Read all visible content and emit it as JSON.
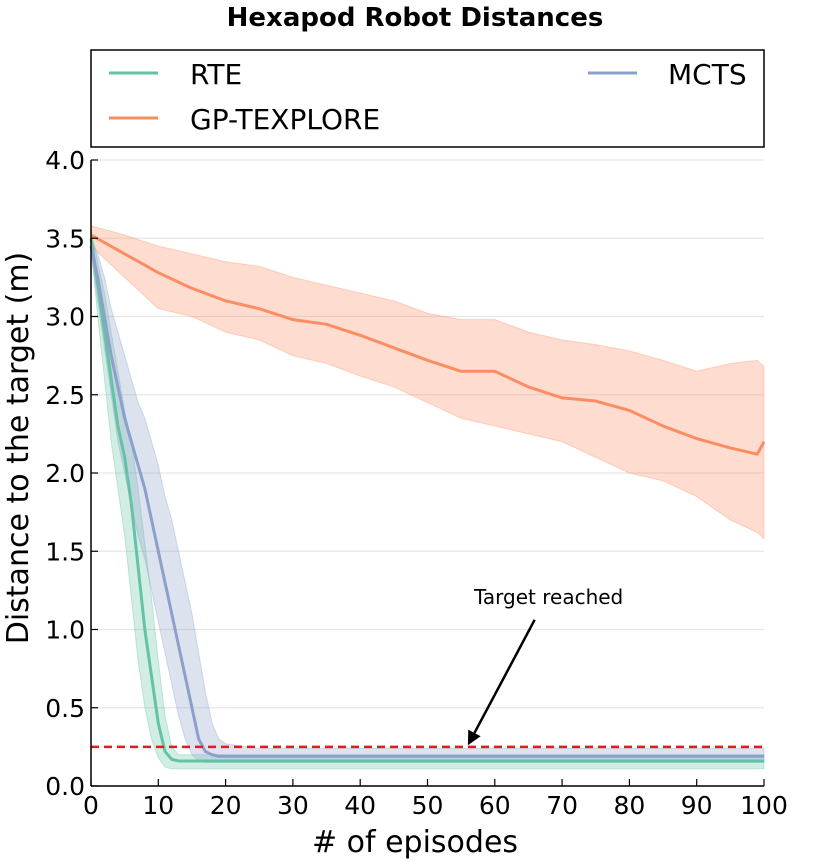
{
  "chart_data": {
    "type": "line",
    "title": "Hexapod Robot Distances",
    "xlabel": "# of episodes",
    "ylabel": "Distance to the target (m)",
    "xlim": [
      0,
      100
    ],
    "ylim": [
      0,
      4
    ],
    "xticks": [
      0,
      10,
      20,
      30,
      40,
      50,
      60,
      70,
      80,
      90,
      100
    ],
    "yticks": [
      0,
      0.5,
      1,
      1.5,
      2,
      2.5,
      3,
      3.5,
      4
    ],
    "xtick_labels": [
      "0",
      "10",
      "20",
      "30",
      "40",
      "50",
      "60",
      "70",
      "80",
      "90",
      "100"
    ],
    "ytick_labels": [
      "0.0",
      "0.5",
      "1.0",
      "1.5",
      "2.0",
      "2.5",
      "3.0",
      "3.5",
      "4.0"
    ],
    "grid": "horizontal",
    "legend": {
      "placement": "top",
      "entries": [
        "RTE",
        "GP-TEXPLORE",
        "MCTS"
      ]
    },
    "threshold": {
      "y": 0.25,
      "color": "#e41a1c",
      "style": "dashed"
    },
    "annotation": {
      "text": "Target reached",
      "text_at": [
        68,
        1.1
      ],
      "arrow_to": [
        56,
        0.26
      ]
    },
    "series": [
      {
        "name": "RTE",
        "color": "#66c2a5",
        "x": [
          0,
          1,
          2,
          3,
          4,
          5,
          6,
          7,
          8,
          9,
          10,
          11,
          12,
          13,
          14,
          15,
          20,
          30,
          50,
          100
        ],
        "mean": [
          3.5,
          3.2,
          2.9,
          2.6,
          2.3,
          2.1,
          1.8,
          1.4,
          1.0,
          0.7,
          0.4,
          0.22,
          0.17,
          0.16,
          0.16,
          0.16,
          0.16,
          0.16,
          0.16,
          0.16
        ],
        "lower": [
          3.45,
          3.0,
          2.6,
          2.2,
          1.9,
          1.6,
          1.2,
          0.8,
          0.5,
          0.3,
          0.18,
          0.12,
          0.11,
          0.11,
          0.11,
          0.11,
          0.11,
          0.11,
          0.11,
          0.11
        ],
        "upper": [
          3.55,
          3.35,
          3.15,
          2.9,
          2.65,
          2.4,
          2.2,
          1.9,
          1.55,
          1.2,
          0.8,
          0.45,
          0.25,
          0.2,
          0.2,
          0.2,
          0.2,
          0.2,
          0.2,
          0.2
        ]
      },
      {
        "name": "GP-TEXPLORE",
        "color": "#fc8d62",
        "x": [
          0,
          5,
          10,
          15,
          20,
          25,
          30,
          35,
          40,
          45,
          50,
          55,
          60,
          65,
          70,
          75,
          80,
          85,
          90,
          95,
          99,
          100
        ],
        "mean": [
          3.52,
          3.4,
          3.28,
          3.18,
          3.1,
          3.05,
          2.98,
          2.95,
          2.88,
          2.8,
          2.72,
          2.65,
          2.65,
          2.55,
          2.48,
          2.46,
          2.4,
          2.3,
          2.22,
          2.16,
          2.12,
          2.2
        ],
        "lower": [
          3.45,
          3.25,
          3.05,
          3.0,
          2.9,
          2.85,
          2.75,
          2.7,
          2.62,
          2.55,
          2.45,
          2.35,
          2.3,
          2.25,
          2.2,
          2.1,
          2.0,
          1.95,
          1.85,
          1.7,
          1.62,
          1.58
        ],
        "upper": [
          3.58,
          3.52,
          3.45,
          3.4,
          3.35,
          3.32,
          3.25,
          3.2,
          3.15,
          3.1,
          3.02,
          2.98,
          2.98,
          2.9,
          2.85,
          2.82,
          2.78,
          2.72,
          2.65,
          2.7,
          2.72,
          2.68
        ]
      },
      {
        "name": "MCTS",
        "color": "#8da0cb",
        "x": [
          0,
          1,
          2,
          3,
          4,
          5,
          6,
          7,
          8,
          9,
          10,
          11,
          12,
          13,
          14,
          15,
          16,
          17,
          18,
          19,
          20,
          25,
          30,
          50,
          100
        ],
        "mean": [
          3.45,
          3.25,
          3.0,
          2.75,
          2.55,
          2.35,
          2.2,
          2.05,
          1.9,
          1.7,
          1.5,
          1.3,
          1.1,
          0.9,
          0.7,
          0.5,
          0.3,
          0.22,
          0.2,
          0.19,
          0.19,
          0.19,
          0.19,
          0.19,
          0.19
        ],
        "lower": [
          3.4,
          3.1,
          2.8,
          2.5,
          2.2,
          2.0,
          1.8,
          1.6,
          1.45,
          1.25,
          1.05,
          0.85,
          0.65,
          0.45,
          0.3,
          0.2,
          0.16,
          0.15,
          0.15,
          0.15,
          0.15,
          0.15,
          0.15,
          0.15,
          0.15
        ],
        "upper": [
          3.5,
          3.4,
          3.25,
          3.05,
          2.9,
          2.75,
          2.6,
          2.45,
          2.35,
          2.2,
          2.05,
          1.85,
          1.7,
          1.5,
          1.3,
          1.1,
          0.85,
          0.6,
          0.4,
          0.3,
          0.27,
          0.24,
          0.24,
          0.24,
          0.24
        ]
      }
    ]
  }
}
